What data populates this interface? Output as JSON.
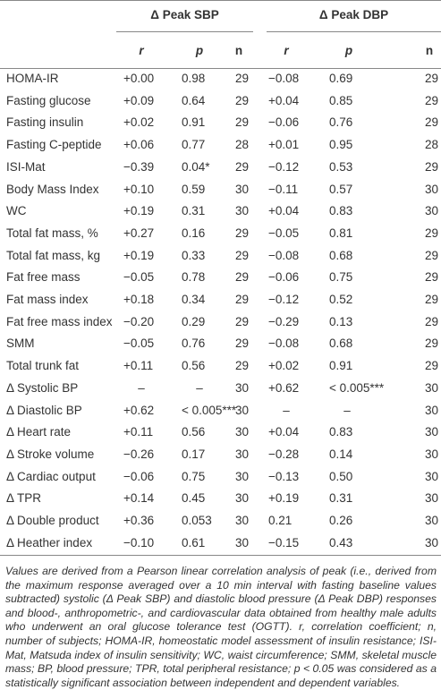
{
  "table": {
    "groups": [
      "Δ Peak SBP",
      "Δ Peak DBP"
    ],
    "columns": [
      "r",
      "p",
      "n",
      "r",
      "p",
      "n"
    ],
    "rows": [
      [
        "HOMA-IR",
        "+0.00",
        "0.98",
        "29",
        "−0.08",
        "0.69",
        "29"
      ],
      [
        "Fasting glucose",
        "+0.09",
        "0.64",
        "29",
        "+0.04",
        "0.85",
        "29"
      ],
      [
        "Fasting insulin",
        "+0.02",
        "0.91",
        "29",
        "−0.06",
        "0.76",
        "29"
      ],
      [
        "Fasting C-peptide",
        "+0.06",
        "0.77",
        "28",
        "+0.01",
        "0.95",
        "28"
      ],
      [
        "ISI-Mat",
        "−0.39",
        "0.04*",
        "29",
        "−0.12",
        "0.53",
        "29"
      ],
      [
        "Body Mass Index",
        "+0.10",
        "0.59",
        "30",
        "−0.11",
        "0.57",
        "30"
      ],
      [
        "WC",
        "+0.19",
        "0.31",
        "30",
        "+0.04",
        "0.83",
        "30"
      ],
      [
        "Total fat mass, %",
        "+0.27",
        "0.16",
        "29",
        "−0.05",
        "0.81",
        "29"
      ],
      [
        "Total fat mass, kg",
        "+0.19",
        "0.33",
        "29",
        "−0.08",
        "0.68",
        "29"
      ],
      [
        "Fat free mass",
        "−0.05",
        "0.78",
        "29",
        "−0.06",
        "0.75",
        "29"
      ],
      [
        "Fat mass index",
        "+0.18",
        "0.34",
        "29",
        "−0.12",
        "0.52",
        "29"
      ],
      [
        "Fat free mass index",
        "−0.20",
        "0.29",
        "29",
        "−0.29",
        "0.13",
        "29"
      ],
      [
        "SMM",
        "−0.05",
        "0.76",
        "29",
        "−0.08",
        "0.68",
        "29"
      ],
      [
        "Total trunk fat",
        "+0.11",
        "0.56",
        "29",
        "+0.02",
        "0.91",
        "29"
      ],
      [
        "Δ Systolic BP",
        "–",
        "–",
        "30",
        "+0.62",
        "< 0.005***",
        "30"
      ],
      [
        "Δ Diastolic BP",
        "+0.62",
        "< 0.005***",
        "30",
        "–",
        "–",
        "30"
      ],
      [
        "Δ Heart rate",
        "+0.11",
        "0.56",
        "30",
        "+0.04",
        "0.83",
        "30"
      ],
      [
        "Δ Stroke volume",
        "−0.26",
        "0.17",
        "30",
        "−0.28",
        "0.14",
        "30"
      ],
      [
        "Δ Cardiac output",
        "−0.06",
        "0.75",
        "30",
        "−0.13",
        "0.50",
        "30"
      ],
      [
        "Δ TPR",
        "+0.14",
        "0.45",
        "30",
        "+0.19",
        "0.31",
        "30"
      ],
      [
        "Δ Double product",
        "+0.36",
        "0.053",
        "30",
        "0.21",
        "0.26",
        "30"
      ],
      [
        "Δ Heather index",
        "−0.10",
        "0.61",
        "30",
        "−0.15",
        "0.43",
        "30"
      ]
    ],
    "footnote": "Values are derived from a Pearson linear correlation analysis of peak (i.e., derived from the maximum response averaged over a 10 min interval with fasting baseline values subtracted) systolic (Δ Peak SBP) and diastolic blood pressure (Δ Peak DBP) responses and blood-, anthropometric-, and cardiovascular data obtained from healthy male adults who underwent an oral glucose tolerance test (OGTT). r, correlation coefficient; n, number of subjects; HOMA-IR, homeostatic model assessment of insulin resistance; ISI-Mat, Matsuda index of insulin sensitivity; WC, waist circumference; SMM, skeletal muscle mass; BP, blood pressure; TPR, total peripheral resistance; p < 0.05 was considered as a statistically significant association between independent and dependent variables."
  }
}
